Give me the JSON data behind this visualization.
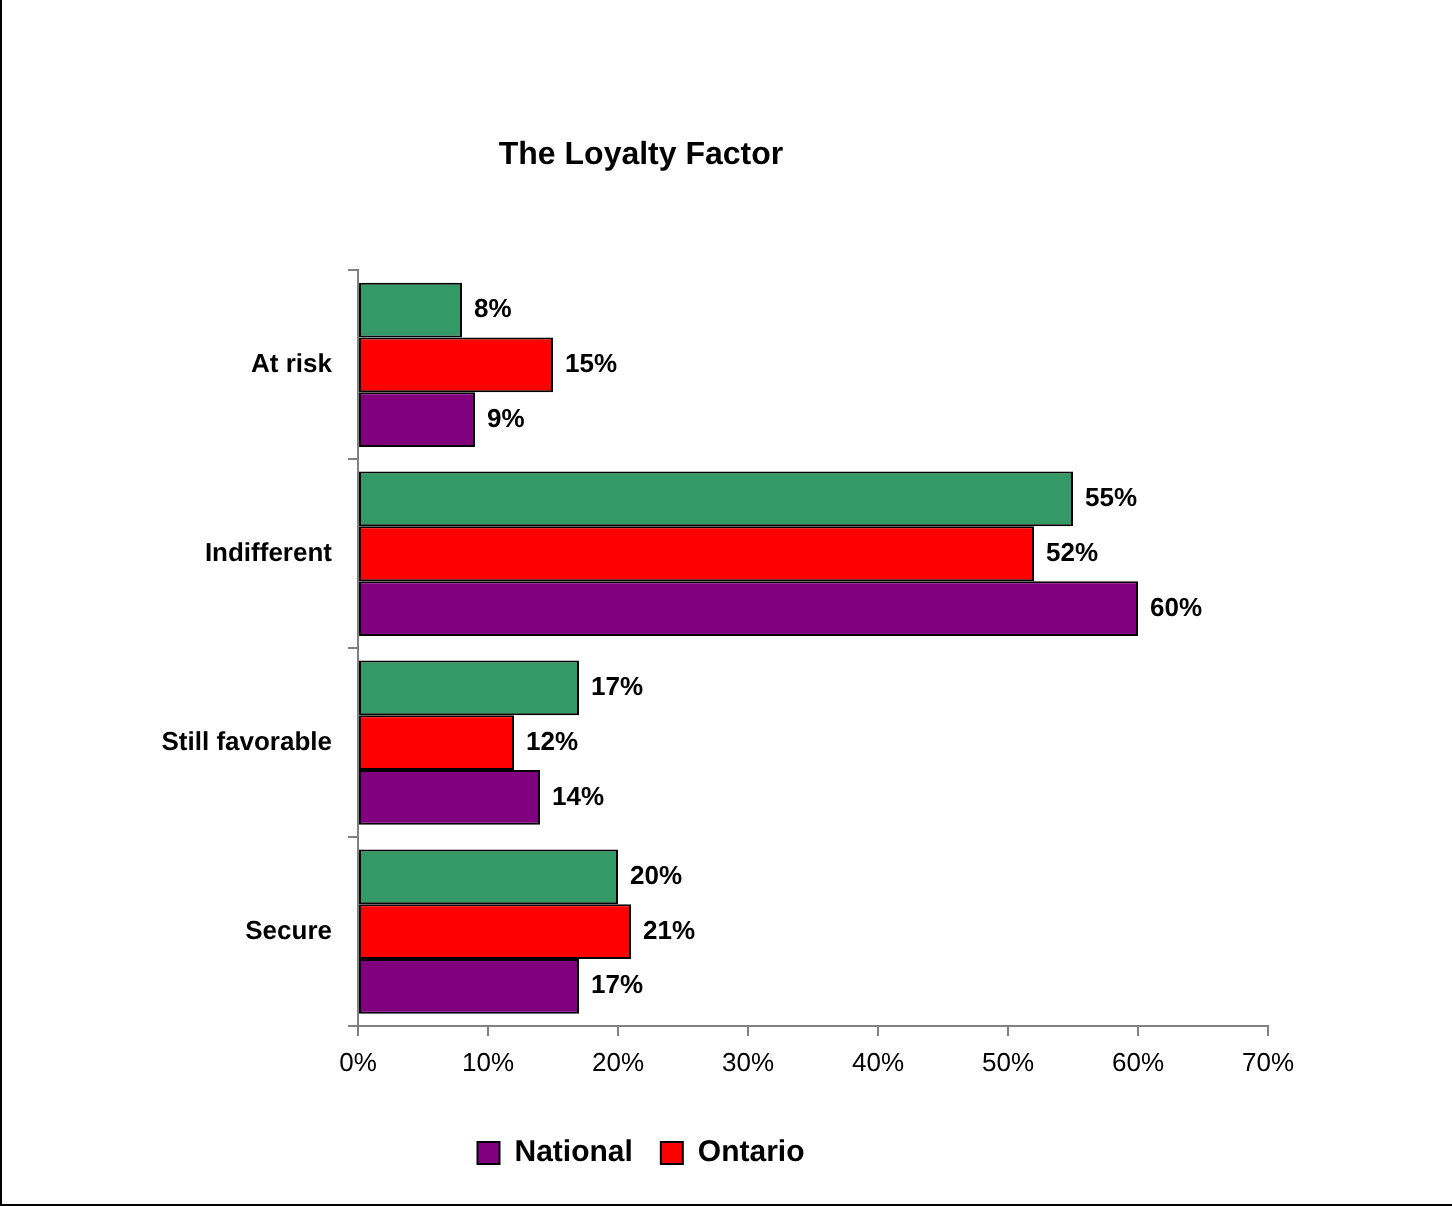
{
  "chart_data": {
    "type": "bar",
    "title": "The Loyalty Factor",
    "orientation": "horizontal",
    "categories": [
      "At risk",
      "Indifferent",
      "Still favorable",
      "Secure"
    ],
    "series": [
      {
        "name": "National",
        "color": "#800080",
        "values": [
          9,
          60,
          14,
          17
        ],
        "value_labels": [
          "9%",
          "60%",
          "14%",
          "17%"
        ]
      },
      {
        "name": "Ontario",
        "color": "#ff0000",
        "values": [
          15,
          52,
          12,
          21
        ],
        "value_labels": [
          "15%",
          "52%",
          "12%",
          "21%"
        ]
      },
      {
        "color": "#339966",
        "values": [
          8,
          55,
          17,
          20
        ],
        "value_labels": [
          "8%",
          "55%",
          "17%",
          "20%"
        ]
      }
    ],
    "xlim": [
      0,
      70
    ],
    "xticks": [
      {
        "value": 0,
        "label": "0%"
      },
      {
        "value": 10,
        "label": "10%"
      },
      {
        "value": 20,
        "label": "20%"
      },
      {
        "value": 30,
        "label": "30%"
      },
      {
        "value": 40,
        "label": "40%"
      },
      {
        "value": 50,
        "label": "50%"
      },
      {
        "value": 60,
        "label": "60%"
      },
      {
        "value": 70,
        "label": "70%"
      }
    ],
    "grid": false,
    "legend": "bottom"
  }
}
